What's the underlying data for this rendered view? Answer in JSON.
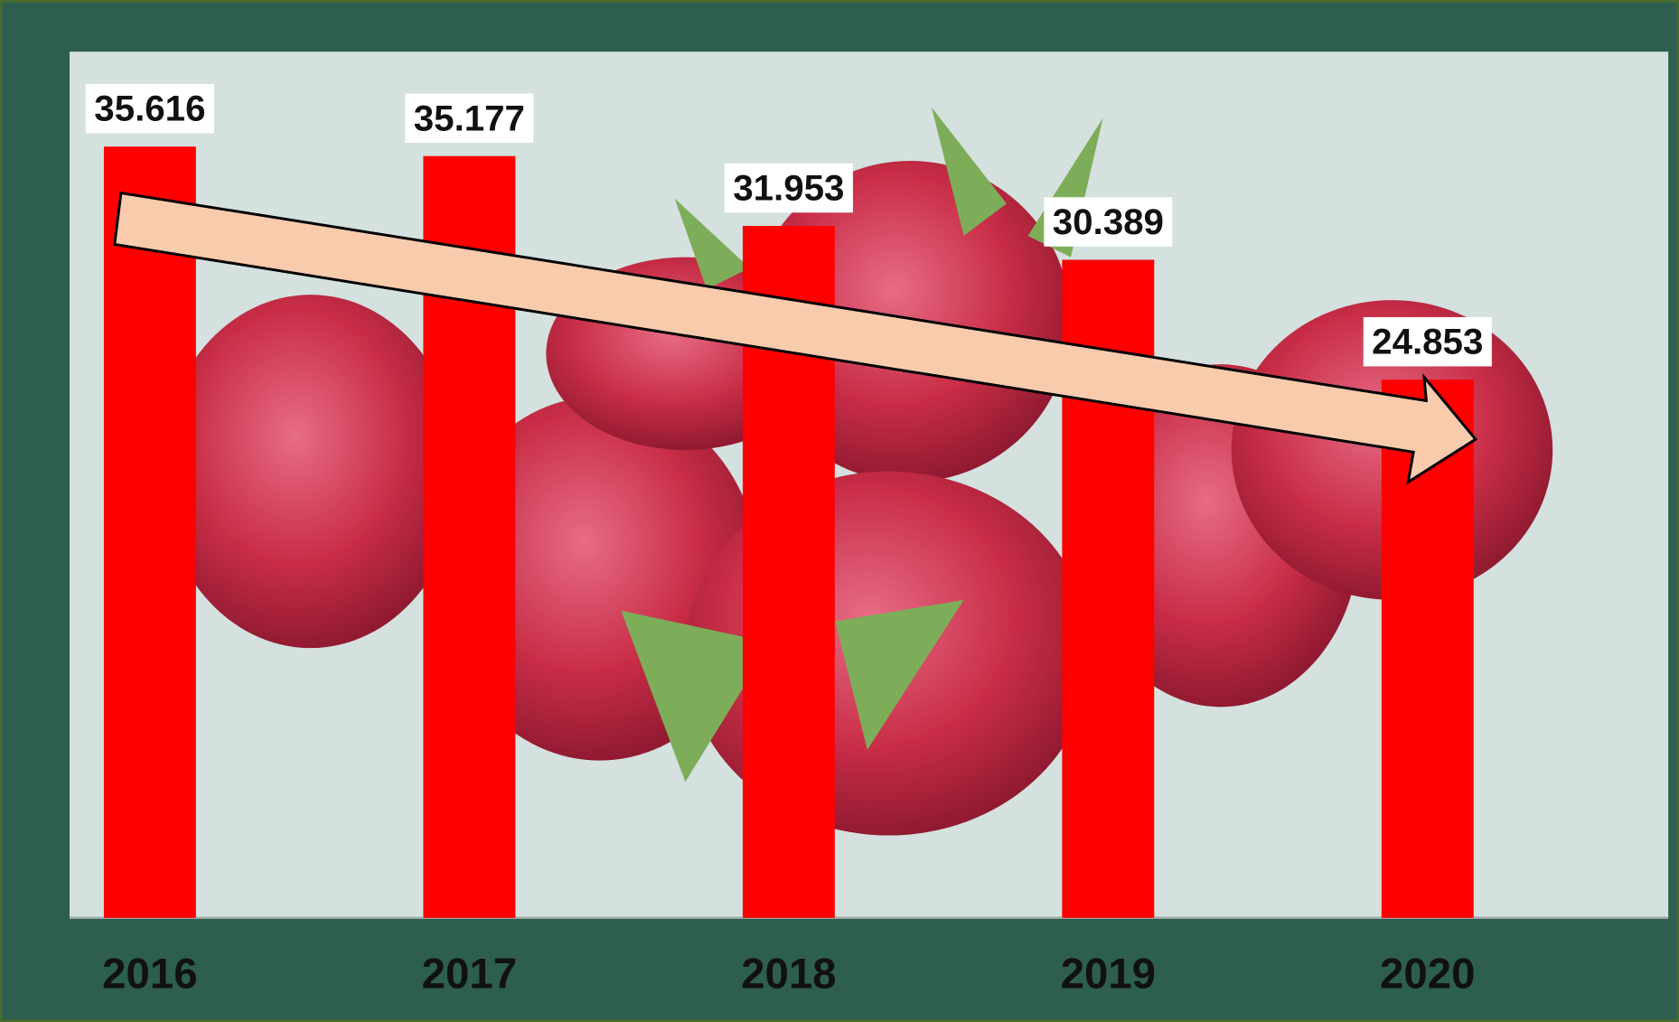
{
  "chart_data": {
    "type": "bar",
    "categories": [
      "2016",
      "2017",
      "2018",
      "2019",
      "2020"
    ],
    "values": [
      35.616,
      35.177,
      31.953,
      30.389,
      24.853
    ],
    "color": "#ff0000",
    "ylim": [
      0,
      40
    ]
  }
}
